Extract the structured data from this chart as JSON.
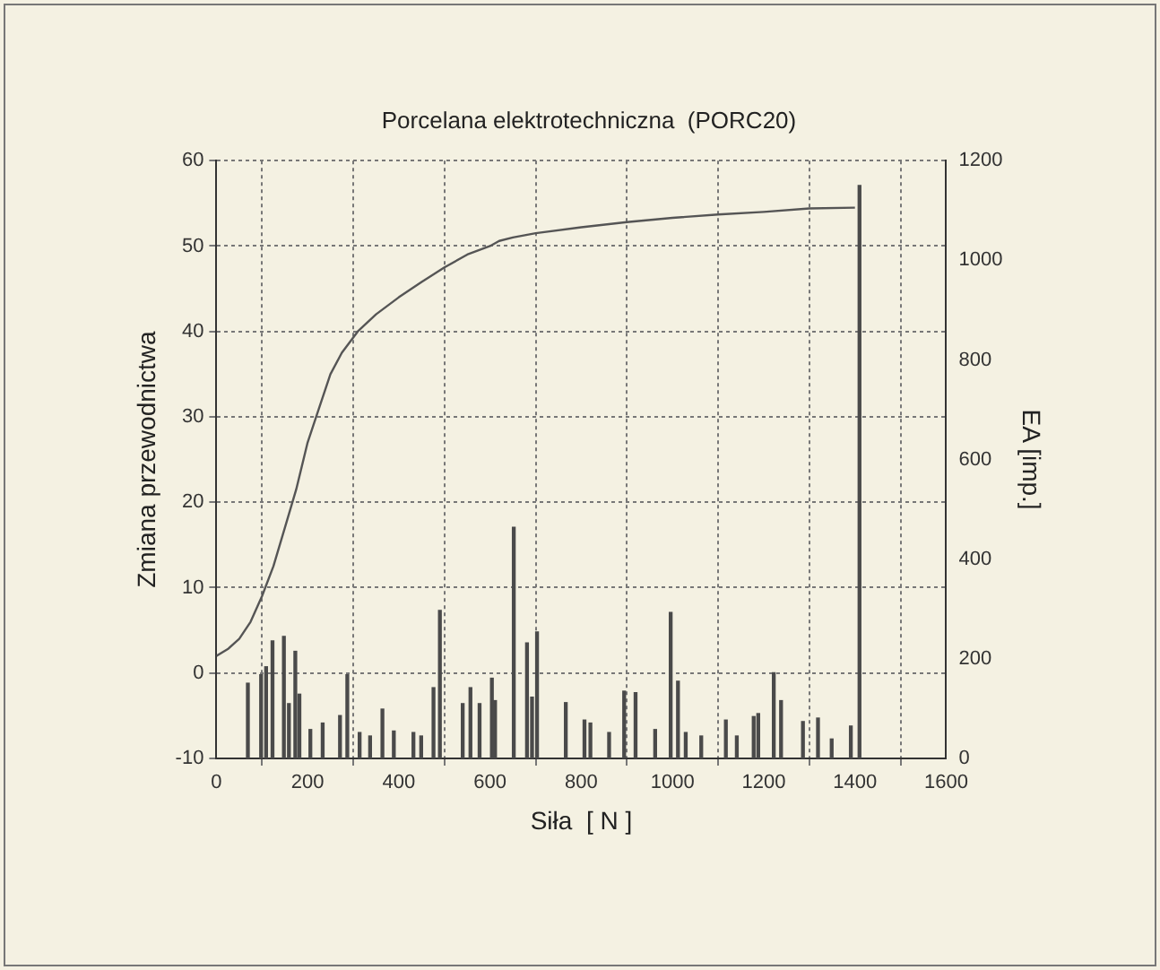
{
  "chart_data": {
    "type": "line",
    "title": "Porcelana elektrotechniczna  (PORC20)",
    "xlabel": "Siła  [ N ]",
    "ylabel": "Zmiana przewodnictwa",
    "y2label": "EA [imp.]",
    "xlim": [
      0,
      1600
    ],
    "xticks": [
      0,
      200,
      400,
      600,
      800,
      1000,
      1200,
      1400,
      1600
    ],
    "ylim": [
      -10,
      60
    ],
    "yticks": [
      -10,
      0,
      10,
      20,
      30,
      40,
      50,
      60
    ],
    "y2lim": [
      0,
      1200
    ],
    "y2ticks": [
      0,
      200,
      400,
      600,
      800,
      1000,
      1200
    ],
    "grid": true,
    "legend": false,
    "series": [
      {
        "type": "line",
        "axis": "y",
        "color": "#555555",
        "x": [
          0,
          25,
          50,
          75,
          100,
          125,
          150,
          175,
          200,
          225,
          250,
          275,
          310,
          350,
          400,
          450,
          500,
          550,
          600,
          620,
          650,
          700,
          800,
          900,
          1000,
          1100,
          1200,
          1300,
          1400
        ],
        "values": [
          2,
          2.8,
          4,
          6,
          9,
          12.5,
          17,
          21.5,
          27,
          31,
          35,
          37.5,
          40,
          42,
          44,
          45.8,
          47.5,
          49,
          50,
          50.6,
          51,
          51.5,
          52.2,
          52.8,
          53.3,
          53.7,
          54,
          54.4,
          54.5
        ]
      },
      {
        "type": "bar",
        "axis": "y2",
        "color": "#4a4a4a",
        "x": [
          69,
          98,
          109,
          123,
          148,
          159,
          173,
          182,
          206,
          233,
          271,
          287,
          314,
          337,
          364,
          389,
          432,
          449,
          476,
          487,
          490,
          540,
          557,
          577,
          604,
          611,
          649,
          652,
          681,
          692,
          703,
          766,
          807,
          820,
          861,
          894,
          919,
          962,
          996,
          1012,
          1029,
          1063,
          1117,
          1141,
          1178,
          1188,
          1222,
          1238,
          1286,
          1319,
          1349,
          1391,
          1410
        ],
        "values": [
          151,
          168,
          184,
          236,
          245,
          110,
          215,
          129,
          58,
          71,
          86,
          168,
          52,
          45,
          99,
          55,
          52,
          45,
          142,
          null,
          297,
          110,
          142,
          110,
          161,
          116,
          null,
          464,
          232,
          123,
          254,
          112,
          77,
          71,
          52,
          135,
          132,
          58,
          293,
          155,
          52,
          45,
          77,
          45,
          84,
          90,
          172,
          116,
          74,
          81,
          39,
          65,
          1150
        ]
      }
    ]
  }
}
